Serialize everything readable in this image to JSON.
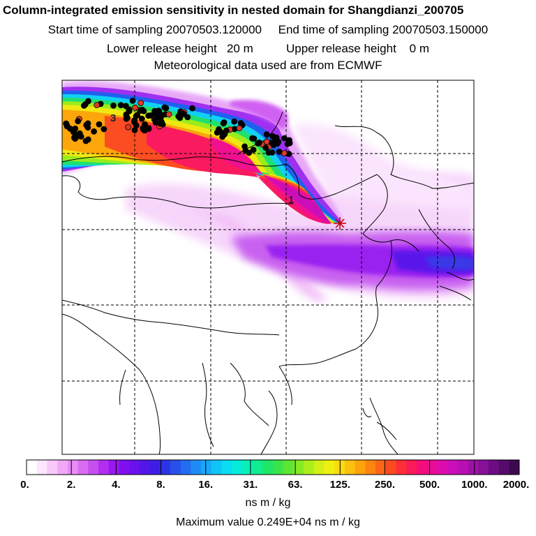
{
  "title": {
    "line1": "Column-integrated emission sensitivity in nested domain for Shangdianzi_200705",
    "line2": "Start time of sampling 20070503.120000     End time of sampling 20070503.150000",
    "line3": "Lower release height   20 m          Upper release height    0 m",
    "line4": "Meteorological data used are from ECMWF"
  },
  "map": {
    "contour_labels": [
      "3",
      "1"
    ],
    "release_marker": "release-site-star"
  },
  "colorbar": {
    "tick_labels": [
      "0.",
      "2.",
      "4.",
      "8.",
      "16.",
      "31.",
      "63.",
      "125.",
      "250.",
      "500.",
      "1000.",
      "2000."
    ],
    "colors": [
      "#ffffff",
      "#fde6fe",
      "#f8c8fb",
      "#f0a8f8",
      "#e88cf5",
      "#d96cf2",
      "#c64ff0",
      "#b22ff0",
      "#9a18f0",
      "#8010ef",
      "#6a12ee",
      "#5316ea",
      "#3e1ee6",
      "#2d34e6",
      "#2a50ea",
      "#246cf0",
      "#1e8cf4",
      "#16a8f6",
      "#10c4f6",
      "#0adcf2",
      "#06ecdc",
      "#08f0b8",
      "#10ec90",
      "#20e468",
      "#3ae448",
      "#5ce632",
      "#84ea22",
      "#acee1a",
      "#d2f016",
      "#f0f010",
      "#fadc10",
      "#fcc00e",
      "#fca20c",
      "#fc8410",
      "#fc6618",
      "#fc4a22",
      "#fc2e38",
      "#fa1a58",
      "#f40e7c",
      "#ea0c98",
      "#dc0cae",
      "#cc0eb8",
      "#b810b4",
      "#a010a8",
      "#881098",
      "#6e0c84",
      "#560a6c",
      "#3e0850"
    ]
  },
  "units": "ns m / kg",
  "max_value": "Maximum value  0.249E+04 ns m / kg"
}
